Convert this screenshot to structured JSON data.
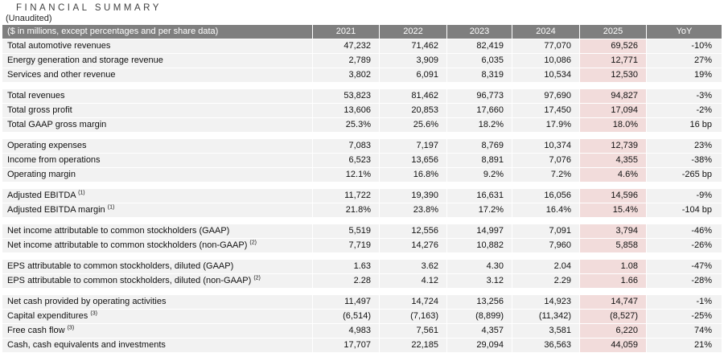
{
  "page": {
    "title": "FINANCIAL SUMMARY",
    "subtitle": "(Unaudited)"
  },
  "table": {
    "header": {
      "label": "($ in millions, except percentages and per share data)",
      "columns": [
        "2021",
        "2022",
        "2023",
        "2024",
        "2025",
        "YoY"
      ]
    },
    "highlight_column": "2025",
    "colors": {
      "header_bg": "#7f7f7f",
      "header_text": "#ffffff",
      "row_bg": "#f2f2f2",
      "highlight_bg": "#f2dcdb",
      "text": "#111111"
    },
    "sections": [
      {
        "rows": [
          {
            "label": "Total automotive revenues",
            "sup": "",
            "values": [
              "47,232",
              "71,462",
              "82,419",
              "77,070",
              "69,526",
              "-10%"
            ]
          },
          {
            "label": "Energy generation and storage revenue",
            "sup": "",
            "values": [
              "2,789",
              "3,909",
              "6,035",
              "10,086",
              "12,771",
              "27%"
            ]
          },
          {
            "label": "Services and other revenue",
            "sup": "",
            "values": [
              "3,802",
              "6,091",
              "8,319",
              "10,534",
              "12,530",
              "19%"
            ]
          }
        ]
      },
      {
        "rows": [
          {
            "label": "Total revenues",
            "sup": "",
            "values": [
              "53,823",
              "81,462",
              "96,773",
              "97,690",
              "94,827",
              "-3%"
            ]
          },
          {
            "label": "Total gross profit",
            "sup": "",
            "values": [
              "13,606",
              "20,853",
              "17,660",
              "17,450",
              "17,094",
              "-2%"
            ]
          },
          {
            "label": "Total GAAP gross margin",
            "sup": "",
            "values": [
              "25.3%",
              "25.6%",
              "18.2%",
              "17.9%",
              "18.0%",
              "16 bp"
            ]
          }
        ]
      },
      {
        "rows": [
          {
            "label": "Operating expenses",
            "sup": "",
            "values": [
              "7,083",
              "7,197",
              "8,769",
              "10,374",
              "12,739",
              "23%"
            ]
          },
          {
            "label": "Income from operations",
            "sup": "",
            "values": [
              "6,523",
              "13,656",
              "8,891",
              "7,076",
              "4,355",
              "-38%"
            ]
          },
          {
            "label": "Operating margin",
            "sup": "",
            "values": [
              "12.1%",
              "16.8%",
              "9.2%",
              "7.2%",
              "4.6%",
              "-265 bp"
            ]
          }
        ]
      },
      {
        "rows": [
          {
            "label": "Adjusted EBITDA",
            "sup": "(1)",
            "values": [
              "11,722",
              "19,390",
              "16,631",
              "16,056",
              "14,596",
              "-9%"
            ]
          },
          {
            "label": "Adjusted EBITDA margin",
            "sup": "(1)",
            "values": [
              "21.8%",
              "23.8%",
              "17.2%",
              "16.4%",
              "15.4%",
              "-104 bp"
            ]
          }
        ]
      },
      {
        "rows": [
          {
            "label": "Net income attributable to common stockholders (GAAP)",
            "sup": "",
            "values": [
              "5,519",
              "12,556",
              "14,997",
              "7,091",
              "3,794",
              "-46%"
            ]
          },
          {
            "label": "Net income attributable to common stockholders (non-GAAP)",
            "sup": "(2)",
            "values": [
              "7,719",
              "14,276",
              "10,882",
              "7,960",
              "5,858",
              "-26%"
            ]
          }
        ]
      },
      {
        "rows": [
          {
            "label": "EPS attributable to common stockholders, diluted (GAAP)",
            "sup": "",
            "values": [
              "1.63",
              "3.62",
              "4.30",
              "2.04",
              "1.08",
              "-47%"
            ]
          },
          {
            "label": "EPS attributable to common stockholders, diluted (non-GAAP)",
            "sup": "(2)",
            "values": [
              "2.28",
              "4.12",
              "3.12",
              "2.29",
              "1.66",
              "-28%"
            ]
          }
        ]
      },
      {
        "rows": [
          {
            "label": "Net cash provided by operating activities",
            "sup": "",
            "values": [
              "11,497",
              "14,724",
              "13,256",
              "14,923",
              "14,747",
              "-1%"
            ]
          },
          {
            "label": "Capital expenditures",
            "sup": "(3)",
            "values": [
              "(6,514)",
              "(7,163)",
              "(8,899)",
              "(11,342)",
              "(8,527)",
              "-25%"
            ]
          },
          {
            "label": "Free cash flow",
            "sup": "(3)",
            "values": [
              "4,983",
              "7,561",
              "4,357",
              "3,581",
              "6,220",
              "74%"
            ]
          },
          {
            "label": "Cash, cash equivalents and investments",
            "sup": "",
            "values": [
              "17,707",
              "22,185",
              "29,094",
              "36,563",
              "44,059",
              "21%"
            ]
          }
        ]
      }
    ]
  }
}
